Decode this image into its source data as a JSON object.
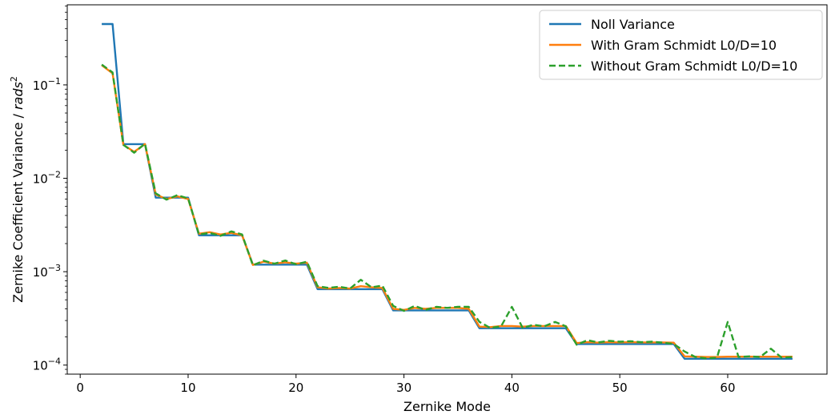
{
  "chart_data": {
    "type": "line",
    "title": "",
    "xlabel": "Zernike Mode",
    "ylabel": "Zernike Coefficient Variance / rads²",
    "ylabel_parts": {
      "prefix": "Zernike Coefficient Variance / ",
      "unit": "rads",
      "sup": "2"
    },
    "xlim": [
      -1.2,
      69.2
    ],
    "ylim": [
      8e-05,
      0.72
    ],
    "yscale": "log",
    "grid": false,
    "legend_position": "top-right",
    "x_ticks": [
      0,
      10,
      20,
      30,
      40,
      50,
      60
    ],
    "x_tick_labels": [
      "0",
      "10",
      "20",
      "30",
      "40",
      "50",
      "60"
    ],
    "y_ticks": [
      0.0001,
      0.001,
      0.01,
      0.1
    ],
    "y_tick_labels": [
      {
        "base": "10",
        "exp": "−4"
      },
      {
        "base": "10",
        "exp": "−3"
      },
      {
        "base": "10",
        "exp": "−2"
      },
      {
        "base": "10",
        "exp": "−1"
      }
    ],
    "x": [
      2,
      3,
      4,
      5,
      6,
      7,
      8,
      9,
      10,
      11,
      12,
      13,
      14,
      15,
      16,
      17,
      18,
      19,
      20,
      21,
      22,
      23,
      24,
      25,
      26,
      27,
      28,
      29,
      30,
      31,
      32,
      33,
      34,
      35,
      36,
      37,
      38,
      39,
      40,
      41,
      42,
      43,
      44,
      45,
      46,
      47,
      48,
      49,
      50,
      51,
      52,
      53,
      54,
      55,
      56,
      57,
      58,
      59,
      60,
      61,
      62,
      63,
      64,
      65,
      66
    ],
    "series": [
      {
        "name": "Noll Variance",
        "color": "#1f77b4",
        "dash": "solid",
        "values": [
          0.448,
          0.448,
          0.0232,
          0.0232,
          0.0232,
          0.0062,
          0.0062,
          0.0062,
          0.0062,
          0.00245,
          0.00245,
          0.00245,
          0.00245,
          0.00245,
          0.00119,
          0.00119,
          0.00119,
          0.00119,
          0.00119,
          0.00119,
          0.00065,
          0.00065,
          0.00065,
          0.00065,
          0.00065,
          0.00065,
          0.00065,
          0.000385,
          0.000385,
          0.000385,
          0.000385,
          0.000385,
          0.000385,
          0.000385,
          0.000385,
          0.000248,
          0.000248,
          0.000248,
          0.000248,
          0.000248,
          0.000248,
          0.000248,
          0.000248,
          0.000248,
          0.000168,
          0.000168,
          0.000168,
          0.000168,
          0.000168,
          0.000168,
          0.000168,
          0.000168,
          0.000168,
          0.000168,
          0.000117,
          0.000117,
          0.000117,
          0.000117,
          0.000117,
          0.000117,
          0.000117,
          0.000117,
          0.000117,
          0.000117,
          0.000117
        ]
      },
      {
        "name": "With Gram Schmidt L0/D=10",
        "color": "#ff7f0e",
        "dash": "solid",
        "values": [
          0.162,
          0.133,
          0.0228,
          0.0192,
          0.0232,
          0.0067,
          0.006,
          0.0064,
          0.006,
          0.00255,
          0.00265,
          0.0025,
          0.0026,
          0.00245,
          0.00118,
          0.00128,
          0.00122,
          0.00126,
          0.00122,
          0.00125,
          0.00068,
          0.00066,
          0.00067,
          0.00066,
          0.0007,
          0.00068,
          0.00067,
          0.0004,
          0.00039,
          0.00041,
          0.0004,
          0.00041,
          0.00041,
          0.00041,
          0.0004,
          0.000258,
          0.000255,
          0.000262,
          0.000262,
          0.000258,
          0.000262,
          0.000262,
          0.000262,
          0.000262,
          0.000172,
          0.000176,
          0.000174,
          0.000176,
          0.000175,
          0.000176,
          0.000175,
          0.000175,
          0.000175,
          0.000174,
          0.000124,
          0.000123,
          0.000122,
          0.000122,
          0.000123,
          0.000123,
          0.000123,
          0.000123,
          0.000123,
          0.000123,
          0.000123
        ]
      },
      {
        "name": "Without Gram Schmidt L0/D=10",
        "color": "#2ca02c",
        "dash": "dashed",
        "values": [
          0.165,
          0.136,
          0.0228,
          0.0188,
          0.0235,
          0.0069,
          0.0059,
          0.0066,
          0.0061,
          0.0025,
          0.0026,
          0.00242,
          0.0027,
          0.0025,
          0.00117,
          0.00131,
          0.00122,
          0.00132,
          0.0012,
          0.00128,
          0.0007,
          0.00067,
          0.00069,
          0.00066,
          0.00082,
          0.00068,
          0.00071,
          0.00043,
          0.00038,
          0.00043,
          0.00039,
          0.00042,
          0.00041,
          0.00042,
          0.00042,
          0.00029,
          0.00025,
          0.00026,
          0.00042,
          0.00025,
          0.00027,
          0.00026,
          0.00029,
          0.00026,
          0.000165,
          0.000185,
          0.000175,
          0.000182,
          0.000178,
          0.00018,
          0.000176,
          0.000178,
          0.000174,
          0.000168,
          0.00014,
          0.000122,
          0.000118,
          0.00012,
          0.00029,
          0.000122,
          0.000124,
          0.000122,
          0.00015,
          0.00012,
          0.000122
        ]
      }
    ]
  }
}
